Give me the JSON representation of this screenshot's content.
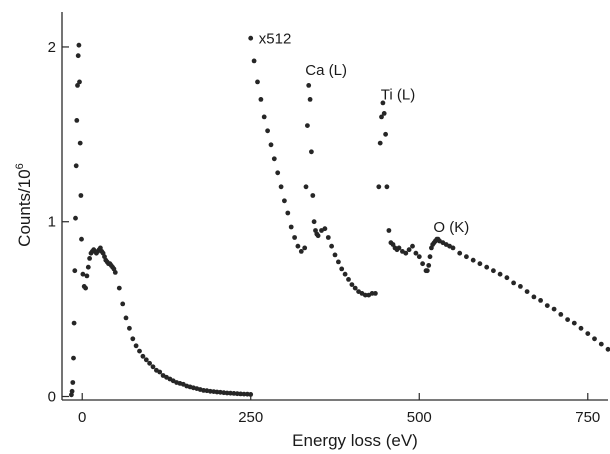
{
  "chart_data": {
    "type": "scatter",
    "title": "",
    "xlabel": "Energy loss (eV)",
    "ylabel": "Counts/10",
    "ylabel_superscript": "6",
    "xlim": [
      -30,
      780
    ],
    "ylim": [
      -0.02,
      2.2
    ],
    "xticks": [
      0,
      250,
      500,
      750
    ],
    "xtick_labels": [
      "0",
      "250",
      "500",
      "750"
    ],
    "yticks": [
      0,
      1,
      2
    ],
    "ytick_labels": [
      "0",
      "1",
      "2"
    ],
    "grid": false,
    "colors": {
      "points": "#262626",
      "axes": "#2a2a2a"
    },
    "annotations": [
      {
        "text": "x512",
        "x": 262,
        "y": 2.02
      },
      {
        "text": "Ca (L)",
        "x": 331,
        "y": 1.84
      },
      {
        "text": "Ti (L)",
        "x": 443,
        "y": 1.7
      },
      {
        "text": "O (K)",
        "x": 521,
        "y": 0.94
      }
    ],
    "series": [
      {
        "scale": 1,
        "x": [
          -16,
          -15,
          -14,
          -13,
          -12,
          -11,
          -10,
          -9,
          -8,
          -7,
          -6,
          -5,
          -4,
          -3,
          -2,
          -1,
          1,
          3,
          5,
          7,
          9,
          11,
          13,
          15,
          17,
          19,
          21,
          23,
          25,
          27,
          29,
          31,
          33,
          35,
          37,
          39,
          41,
          43,
          45,
          47,
          49,
          55,
          60,
          65,
          70,
          75,
          80,
          85,
          90,
          95,
          100,
          105,
          110,
          115,
          120,
          125,
          130,
          135,
          140,
          145,
          150,
          155,
          160,
          165,
          170,
          175,
          180,
          185,
          190,
          195,
          200,
          205,
          210,
          215,
          220,
          225,
          230,
          235,
          240,
          245,
          250
        ],
        "y": [
          0.01,
          0.03,
          0.08,
          0.22,
          0.42,
          0.72,
          1.02,
          1.32,
          1.58,
          1.78,
          1.95,
          2.01,
          1.8,
          1.45,
          1.15,
          0.9,
          0.7,
          0.63,
          0.62,
          0.69,
          0.74,
          0.79,
          0.82,
          0.83,
          0.84,
          0.83,
          0.82,
          0.83,
          0.84,
          0.85,
          0.83,
          0.82,
          0.8,
          0.78,
          0.77,
          0.76,
          0.76,
          0.75,
          0.74,
          0.73,
          0.71,
          0.62,
          0.53,
          0.45,
          0.39,
          0.33,
          0.29,
          0.26,
          0.23,
          0.21,
          0.19,
          0.17,
          0.15,
          0.14,
          0.12,
          0.11,
          0.1,
          0.09,
          0.08,
          0.075,
          0.07,
          0.06,
          0.055,
          0.05,
          0.045,
          0.04,
          0.035,
          0.033,
          0.03,
          0.028,
          0.026,
          0.024,
          0.022,
          0.02,
          0.019,
          0.018,
          0.016,
          0.015,
          0.014,
          0.013,
          0.012
        ]
      },
      {
        "scale": 512,
        "x": [
          250,
          255,
          260,
          265,
          270,
          275,
          280,
          285,
          290,
          295,
          300,
          305,
          310,
          315,
          320,
          325,
          330,
          332,
          334,
          336,
          338,
          340,
          342,
          344,
          346,
          348,
          350,
          355,
          360,
          365,
          370,
          375,
          380,
          385,
          390,
          395,
          400,
          405,
          410,
          415,
          420,
          425,
          430,
          435,
          440,
          442,
          444,
          446,
          448,
          450,
          452,
          455,
          458,
          461,
          464,
          467,
          470,
          475,
          480,
          485,
          490,
          495,
          500,
          505,
          510,
          512,
          514,
          516,
          518,
          520,
          522,
          524,
          526,
          528,
          530,
          535,
          540,
          545,
          550,
          560,
          570,
          580,
          590,
          600,
          610,
          620,
          630,
          640,
          650,
          660,
          670,
          680,
          690,
          700,
          710,
          720,
          730,
          740,
          750,
          760,
          770,
          780
        ],
        "y": [
          2.05,
          1.92,
          1.8,
          1.7,
          1.6,
          1.52,
          1.44,
          1.36,
          1.28,
          1.2,
          1.12,
          1.05,
          0.97,
          0.91,
          0.86,
          0.83,
          0.85,
          1.2,
          1.55,
          1.78,
          1.7,
          1.4,
          1.15,
          1.0,
          0.95,
          0.93,
          0.92,
          0.95,
          0.96,
          0.91,
          0.86,
          0.81,
          0.77,
          0.73,
          0.7,
          0.67,
          0.64,
          0.62,
          0.6,
          0.59,
          0.58,
          0.58,
          0.59,
          0.59,
          1.2,
          1.45,
          1.6,
          1.68,
          1.62,
          1.5,
          1.2,
          0.95,
          0.88,
          0.87,
          0.85,
          0.84,
          0.85,
          0.83,
          0.82,
          0.84,
          0.86,
          0.82,
          0.8,
          0.76,
          0.72,
          0.72,
          0.75,
          0.8,
          0.85,
          0.87,
          0.88,
          0.89,
          0.9,
          0.9,
          0.89,
          0.88,
          0.87,
          0.86,
          0.85,
          0.82,
          0.8,
          0.78,
          0.76,
          0.74,
          0.72,
          0.7,
          0.68,
          0.65,
          0.63,
          0.6,
          0.57,
          0.55,
          0.52,
          0.5,
          0.47,
          0.44,
          0.42,
          0.39,
          0.36,
          0.33,
          0.3,
          0.27
        ]
      }
    ]
  }
}
